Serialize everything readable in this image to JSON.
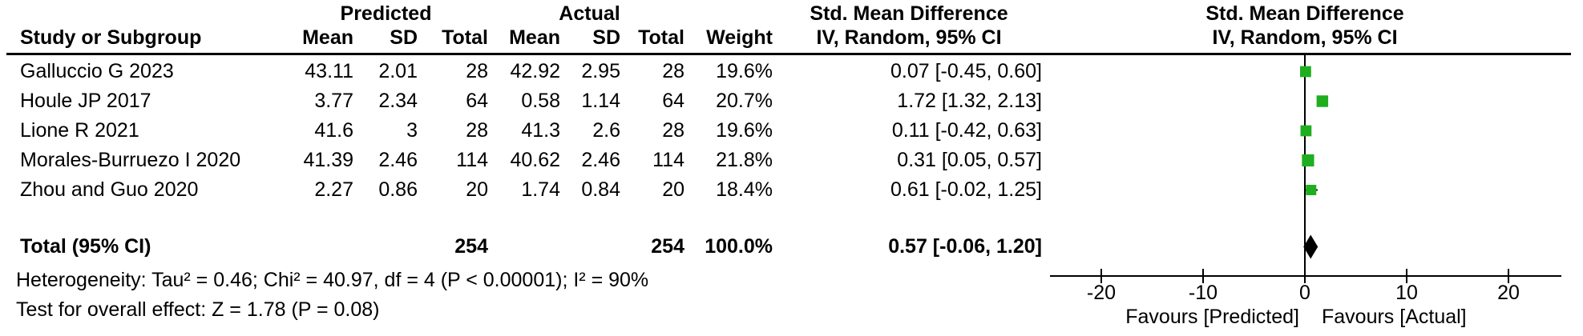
{
  "colors": {
    "square_green": "#1fae1f",
    "diamond_black": "#000000",
    "line_black": "#000000",
    "background": "#ffffff"
  },
  "table": {
    "group_headers": {
      "predicted": "Predicted",
      "actual": "Actual",
      "smd_left": "Std. Mean Difference",
      "smd_right": "Std. Mean Difference"
    },
    "col_headers": {
      "study": "Study or Subgroup",
      "mean_predicted": "Mean",
      "sd_predicted": "SD",
      "total_predicted": "Total",
      "mean_actual": "Mean",
      "sd_actual": "SD",
      "total_actual": "Total",
      "weight": "Weight",
      "ci_left": "IV, Random, 95% CI",
      "ci_right": "IV, Random, 95% CI"
    },
    "rows": [
      {
        "study": "Galluccio G 2023",
        "p_mean": "43.11",
        "p_sd": "2.01",
        "p_total": "28",
        "a_mean": "42.92",
        "a_sd": "2.95",
        "a_total": "28",
        "weight": "19.6%",
        "ci_text": "0.07 [-0.45, 0.60]"
      },
      {
        "study": "Houle JP 2017",
        "p_mean": "3.77",
        "p_sd": "2.34",
        "p_total": "64",
        "a_mean": "0.58",
        "a_sd": "1.14",
        "a_total": "64",
        "weight": "20.7%",
        "ci_text": "1.72 [1.32, 2.13]"
      },
      {
        "study": "Lione R 2021",
        "p_mean": "41.6",
        "p_sd": "3",
        "p_total": "28",
        "a_mean": "41.3",
        "a_sd": "2.6",
        "a_total": "28",
        "weight": "19.6%",
        "ci_text": "0.11 [-0.42, 0.63]"
      },
      {
        "study": "Morales-Burruezo I 2020",
        "p_mean": "41.39",
        "p_sd": "2.46",
        "p_total": "114",
        "a_mean": "40.62",
        "a_sd": "2.46",
        "a_total": "114",
        "weight": "21.8%",
        "ci_text": "0.31 [0.05, 0.57]"
      },
      {
        "study": "Zhou and Guo 2020",
        "p_mean": "2.27",
        "p_sd": "0.86",
        "p_total": "20",
        "a_mean": "1.74",
        "a_sd": "0.84",
        "a_total": "20",
        "weight": "18.4%",
        "ci_text": "0.61 [-0.02, 1.25]"
      }
    ],
    "total_row": {
      "label": "Total (95% CI)",
      "p_total": "254",
      "a_total": "254",
      "weight": "100.0%",
      "ci_text": "0.57 [-0.06, 1.20]"
    },
    "heterogeneity": "Heterogeneity: Tau² = 0.46; Chi² = 40.97, df = 4 (P < 0.00001); I² = 90%",
    "overall_effect": "Test for overall effect: Z = 1.78 (P = 0.08)"
  },
  "chart_data": {
    "type": "forest",
    "title": "Std. Mean Difference",
    "subtitle": "IV, Random, 95% CI",
    "effect_measure": "Std. Mean Difference, IV, Random, 95% CI",
    "x_axis": {
      "ticks": [
        -20,
        -10,
        0,
        10,
        20
      ],
      "xlim": [
        -25,
        25
      ],
      "favours_left": "Favours [Predicted]",
      "favours_right": "Favours [Actual]"
    },
    "studies": [
      {
        "name": "Galluccio G 2023",
        "smd": 0.07,
        "ci_low": -0.45,
        "ci_high": 0.6,
        "weight_pct": 19.6
      },
      {
        "name": "Houle JP 2017",
        "smd": 1.72,
        "ci_low": 1.32,
        "ci_high": 2.13,
        "weight_pct": 20.7
      },
      {
        "name": "Lione R 2021",
        "smd": 0.11,
        "ci_low": -0.42,
        "ci_high": 0.63,
        "weight_pct": 19.6
      },
      {
        "name": "Morales-Burruezo I 2020",
        "smd": 0.31,
        "ci_low": 0.05,
        "ci_high": 0.57,
        "weight_pct": 21.8
      },
      {
        "name": "Zhou and Guo 2020",
        "smd": 0.61,
        "ci_low": -0.02,
        "ci_high": 1.25,
        "weight_pct": 18.4
      }
    ],
    "total": {
      "name": "Total (95% CI)",
      "smd": 0.57,
      "ci_low": -0.06,
      "ci_high": 1.2
    }
  }
}
